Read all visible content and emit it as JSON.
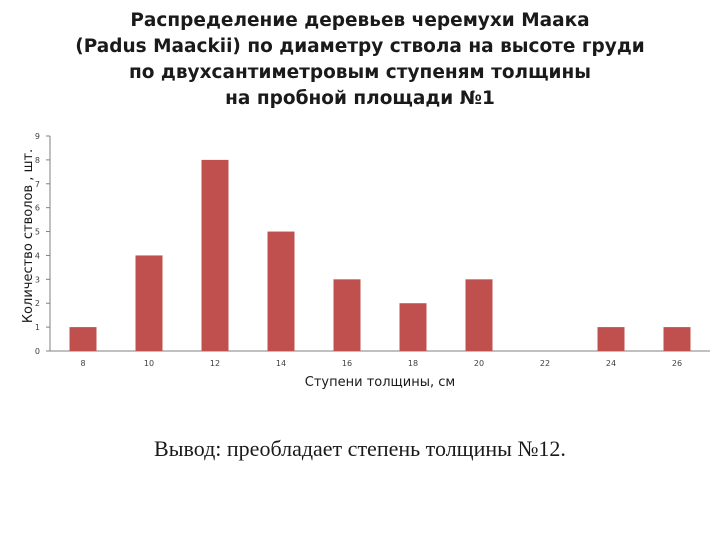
{
  "title_lines": [
    "Распределение деревьев черемухи Маака",
    "(Padus Maackii) по диаметру ствола на высоте груди",
    "по двухсантиметровым ступеням толщины",
    "на пробной площади №1"
  ],
  "chart_data": {
    "type": "bar",
    "categories": [
      "8",
      "10",
      "12",
      "14",
      "16",
      "18",
      "20",
      "22",
      "24",
      "26"
    ],
    "values": [
      1,
      4,
      8,
      5,
      3,
      2,
      3,
      0,
      1,
      1
    ],
    "xlabel": "Ступени толщины, см",
    "ylabel": "Количество стволов , шт.",
    "ylim": [
      0,
      9
    ],
    "yticks": [
      "0",
      "1",
      "2",
      "3",
      "4",
      "5",
      "6",
      "7",
      "8",
      "9"
    ],
    "grid": false,
    "legend": "none",
    "bar_color": "#c0504d"
  },
  "conclusion": "Вывод: преобладает степень толщины №12."
}
